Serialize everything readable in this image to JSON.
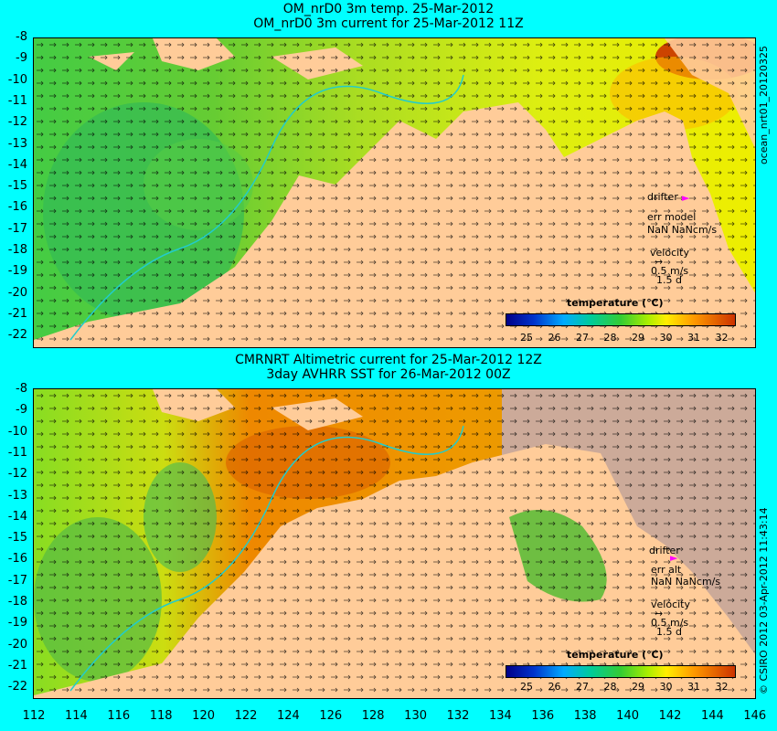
{
  "top": {
    "title1": "OM_nrD0 3m temp. 25-Mar-2012",
    "title2": "OM_nrD0 3m current for 25-Mar-2012 11Z",
    "drifter": "drifter",
    "err": "err model",
    "nan": "NaN NaNcm/s",
    "velocity": "velocity",
    "vscale": "0.5 m/s",
    "vdays": "1.5 d",
    "side_label": "ocean_nrt01_20120325"
  },
  "bottom": {
    "title1": "CMRNRT Altimetric current for 25-Mar-2012 12Z",
    "title2": "3day AVHRR SST for 26-Mar-2012 00Z",
    "drifter": "drifter",
    "err": "err alt",
    "nan": "NaN NaNcm/s",
    "velocity": "velocity",
    "vscale": "0.5 m/s",
    "vdays": "1.5 d",
    "side_label": "© CSIRO 2012 03-Apr-2012 11:43:14"
  },
  "colorbar": {
    "title": "temperature (℃)",
    "labels": [
      "25",
      "26",
      "27",
      "28",
      "29",
      "30",
      "31",
      "32"
    ]
  },
  "yticks": [
    "-8",
    "-9",
    "-10",
    "-11",
    "-12",
    "-13",
    "-14",
    "-15",
    "-16",
    "-17",
    "-18",
    "-19",
    "-20",
    "-21",
    "-22"
  ],
  "xticks": [
    "112",
    "114",
    "116",
    "118",
    "120",
    "122",
    "124",
    "126",
    "128",
    "130",
    "132",
    "134",
    "136",
    "138",
    "140",
    "142",
    "144",
    "146"
  ]
}
